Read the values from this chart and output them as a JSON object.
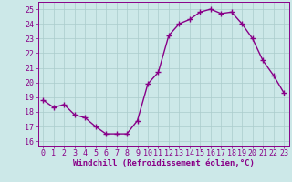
{
  "x": [
    0,
    1,
    2,
    3,
    4,
    5,
    6,
    7,
    8,
    9,
    10,
    11,
    12,
    13,
    14,
    15,
    16,
    17,
    18,
    19,
    20,
    21,
    22,
    23
  ],
  "y": [
    18.8,
    18.3,
    18.5,
    17.8,
    17.6,
    17.0,
    16.5,
    16.5,
    16.5,
    17.4,
    19.9,
    20.7,
    23.2,
    24.0,
    24.3,
    24.8,
    25.0,
    24.7,
    24.8,
    24.0,
    23.0,
    21.5,
    20.5,
    19.3
  ],
  "line_color": "#880088",
  "marker": "+",
  "marker_size": 4,
  "linewidth": 1.0,
  "background_color": "#cce8e8",
  "grid_color": "#aacccc",
  "xlabel": "Windchill (Refroidissement éolien,°C)",
  "xlabel_fontsize": 6.5,
  "ylabel_ticks": [
    16,
    17,
    18,
    19,
    20,
    21,
    22,
    23,
    24,
    25
  ],
  "xlim": [
    -0.5,
    23.5
  ],
  "ylim": [
    15.7,
    25.5
  ],
  "tick_fontsize": 6,
  "tick_color": "#880088",
  "spine_color": "#880088"
}
